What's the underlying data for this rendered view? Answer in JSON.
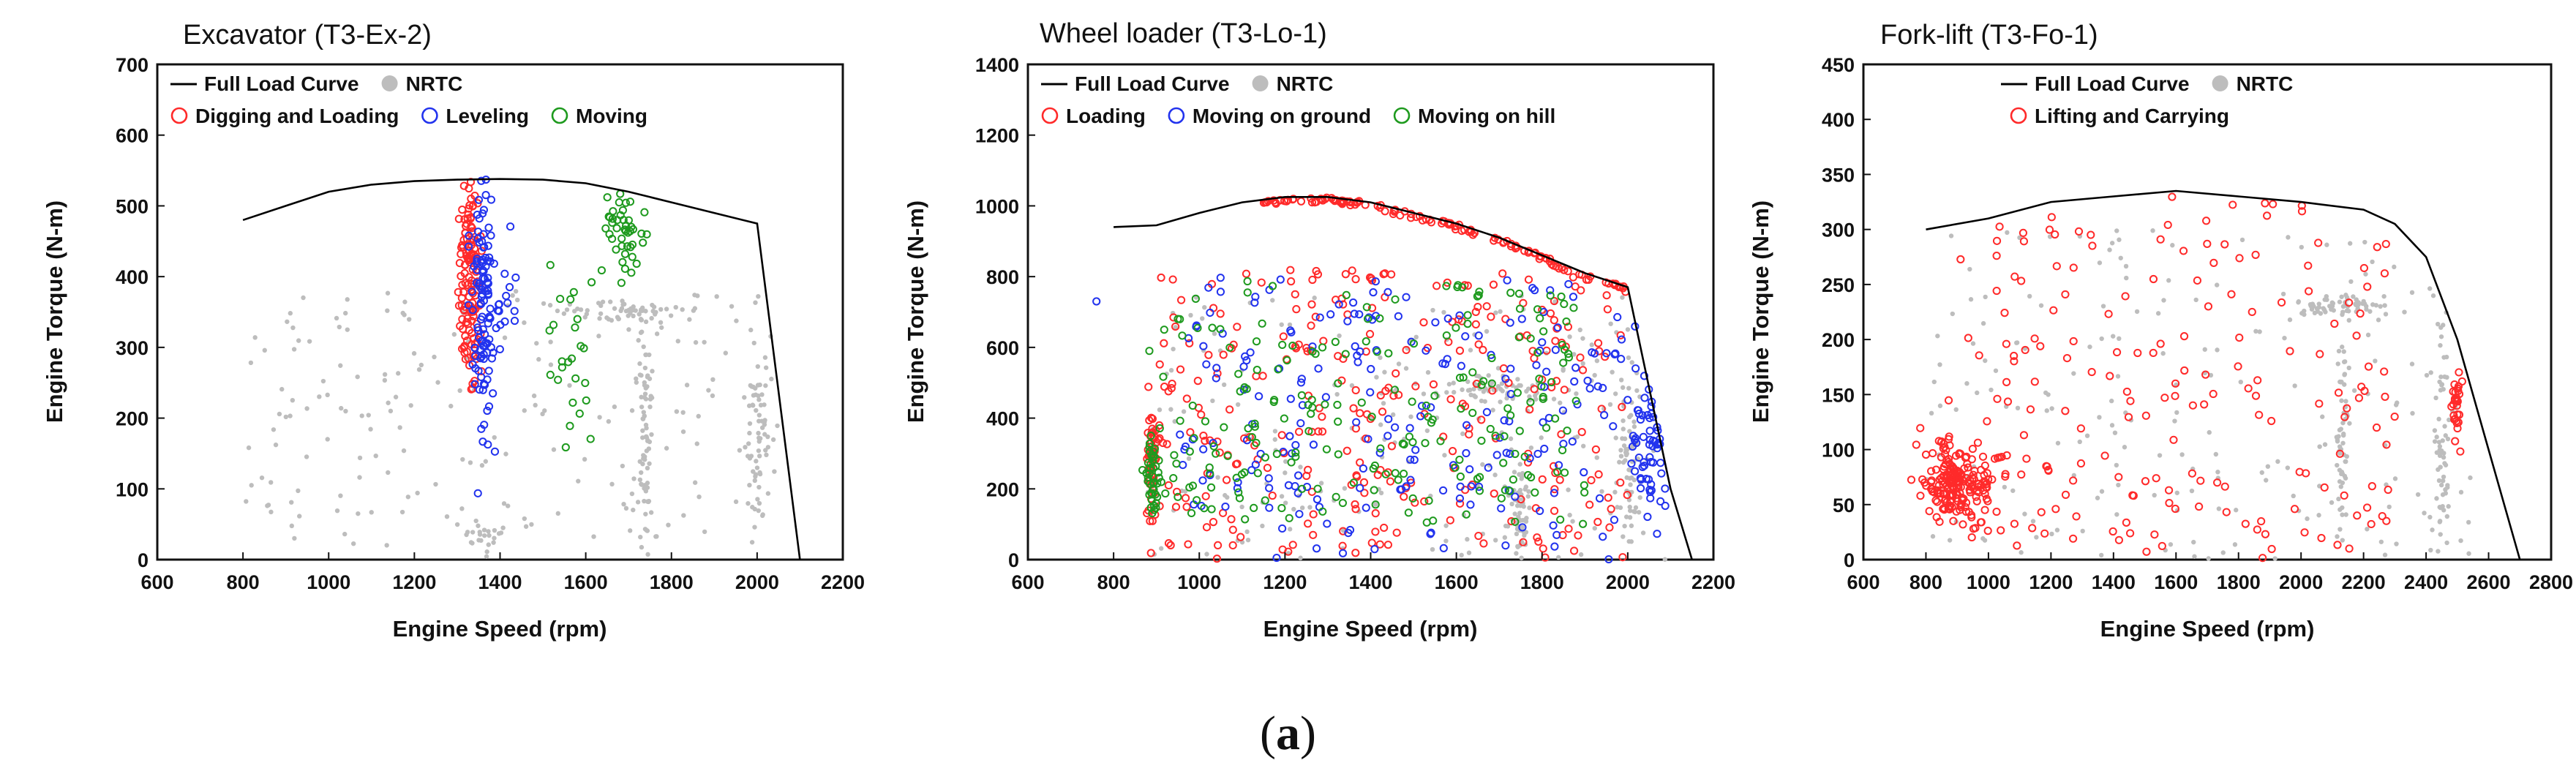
{
  "caption": {
    "open": "(",
    "letter": "a",
    "close": ")"
  },
  "colors": {
    "full_load": "#000000",
    "nrtc": "#bdbdbd",
    "red": "#ff2a2a",
    "blue": "#2233ee",
    "green": "#1e9a1e"
  },
  "chart_data": [
    {
      "type": "scatter",
      "title": "Excavator (T3-Ex-2)",
      "xlabel": "Engine Speed (rpm)",
      "ylabel": "Engine Torque (N-m)",
      "xlim": [
        600,
        2200
      ],
      "ylim": [
        0,
        700
      ],
      "xticks": [
        600,
        800,
        1000,
        1200,
        1400,
        1600,
        1800,
        2000,
        2200
      ],
      "yticks": [
        0,
        100,
        200,
        300,
        400,
        500,
        600,
        700
      ],
      "legend": {
        "row1": [
          {
            "label": "Full Load Curve",
            "kind": "line"
          },
          {
            "label": "NRTC",
            "kind": "gray"
          }
        ],
        "row2": [
          {
            "label": "Digging and Loading",
            "kind": "red"
          },
          {
            "label": "Leveling",
            "kind": "blue"
          },
          {
            "label": "Moving",
            "kind": "green"
          }
        ]
      },
      "full_load_curve": [
        [
          800,
          480
        ],
        [
          900,
          500
        ],
        [
          1000,
          520
        ],
        [
          1100,
          530
        ],
        [
          1200,
          535
        ],
        [
          1300,
          537
        ],
        [
          1400,
          538
        ],
        [
          1500,
          537
        ],
        [
          1600,
          532
        ],
        [
          1700,
          520
        ],
        [
          1800,
          505
        ],
        [
          1900,
          490
        ],
        [
          2000,
          475
        ],
        [
          2100,
          0
        ]
      ],
      "series": [
        {
          "name": "NRTC",
          "kind": "gray",
          "count": 420,
          "spread": [
            [
              800,
              2050
            ],
            [
              20,
              380
            ]
          ],
          "clusters": [
            [
              1720,
              350,
              120,
              12,
              60
            ],
            [
              1740,
              170,
              15,
              150,
              70
            ],
            [
              2000,
              180,
              25,
              130,
              70
            ],
            [
              1350,
              30,
              40,
              20,
              20
            ]
          ]
        },
        {
          "name": "Digging and Loading",
          "kind": "red",
          "count": 140,
          "clusters": [
            [
              1330,
              400,
              22,
              120,
              140
            ]
          ]
        },
        {
          "name": "Leveling",
          "kind": "blue",
          "count": 135,
          "clusters": [
            [
              1360,
              360,
              22,
              170,
              120
            ],
            [
              1420,
              380,
              30,
              60,
              15
            ]
          ]
        },
        {
          "name": "Moving",
          "kind": "green",
          "count": 70,
          "clusters": [
            [
              1690,
              460,
              40,
              50,
              45
            ],
            [
              1560,
              310,
              40,
              120,
              25
            ]
          ]
        }
      ]
    },
    {
      "type": "scatter",
      "title": "Wheel loader (T3-Lo-1)",
      "xlabel": "Engine Speed (rpm)",
      "ylabel": "Engine Torque (N-m)",
      "xlim": [
        600,
        2200
      ],
      "ylim": [
        0,
        1400
      ],
      "xticks": [
        600,
        800,
        1000,
        1200,
        1400,
        1600,
        1800,
        2000,
        2200
      ],
      "yticks": [
        0,
        200,
        400,
        600,
        800,
        1000,
        1200,
        1400
      ],
      "legend": {
        "row1": [
          {
            "label": "Full Load Curve",
            "kind": "line"
          },
          {
            "label": "NRTC",
            "kind": "gray"
          }
        ],
        "row2": [
          {
            "label": "Loading",
            "kind": "red"
          },
          {
            "label": "Moving on ground",
            "kind": "blue"
          },
          {
            "label": "Moving on hill",
            "kind": "green"
          }
        ]
      },
      "full_load_curve": [
        [
          800,
          940
        ],
        [
          900,
          945
        ],
        [
          1000,
          980
        ],
        [
          1100,
          1010
        ],
        [
          1200,
          1025
        ],
        [
          1300,
          1025
        ],
        [
          1400,
          1010
        ],
        [
          1500,
          980
        ],
        [
          1600,
          950
        ],
        [
          1700,
          910
        ],
        [
          1800,
          860
        ],
        [
          1900,
          810
        ],
        [
          2000,
          770
        ],
        [
          2100,
          200
        ],
        [
          2150,
          0
        ]
      ],
      "series": [
        {
          "name": "NRTC",
          "kind": "gray",
          "count": 380,
          "spread": [
            [
              880,
              2100
            ],
            [
              0,
              750
            ]
          ],
          "clusters": [
            [
              1700,
              480,
              150,
              40,
              60
            ],
            [
              1750,
              150,
              20,
              130,
              60
            ],
            [
              2000,
              300,
              30,
              200,
              70
            ]
          ]
        },
        {
          "name": "Loading",
          "kind": "red",
          "count": 340,
          "spread": [
            [
              880,
              2000
            ],
            [
              0,
              820
            ]
          ],
          "clusters": [
            [
              890,
              300,
              12,
              120,
              50
            ]
          ],
          "edge": {
            "from": 1150,
            "to": 2000,
            "count": 130
          }
        },
        {
          "name": "Moving on ground",
          "kind": "blue",
          "count": 300,
          "spread": [
            [
              950,
              2050
            ],
            [
              0,
              800
            ]
          ],
          "clusters": [
            [
              2060,
              350,
              40,
              200,
              80
            ]
          ],
          "extra": [
            [
              760,
              730
            ]
          ]
        },
        {
          "name": "Moving on hill",
          "kind": "green",
          "count": 260,
          "spread": [
            [
              880,
              1900
            ],
            [
              100,
              800
            ]
          ],
          "clusters": [
            [
              890,
              250,
              12,
              100,
              40
            ]
          ]
        }
      ]
    },
    {
      "type": "scatter",
      "title": "Fork-lift (T3-Fo-1)",
      "xlabel": "Engine Speed (rpm)",
      "ylabel": "Engine Torque (N-m)",
      "xlim": [
        600,
        2800
      ],
      "ylim": [
        0,
        450
      ],
      "xticks": [
        600,
        800,
        1000,
        1200,
        1400,
        1600,
        1800,
        2000,
        2200,
        2400,
        2600,
        2800
      ],
      "yticks": [
        0,
        50,
        100,
        150,
        200,
        250,
        300,
        350,
        400,
        450
      ],
      "legend": {
        "row1": [
          {
            "label": "Full Load Curve",
            "kind": "line"
          },
          {
            "label": "NRTC",
            "kind": "gray"
          }
        ],
        "row2": [
          {
            "label": "Lifting and Carrying",
            "kind": "red"
          }
        ]
      },
      "full_load_curve": [
        [
          800,
          300
        ],
        [
          1000,
          310
        ],
        [
          1200,
          325
        ],
        [
          1400,
          330
        ],
        [
          1600,
          335
        ],
        [
          1800,
          330
        ],
        [
          2000,
          325
        ],
        [
          2200,
          318
        ],
        [
          2300,
          305
        ],
        [
          2400,
          275
        ],
        [
          2500,
          200
        ],
        [
          2600,
          100
        ],
        [
          2700,
          0
        ]
      ],
      "series": [
        {
          "name": "NRTC",
          "kind": "gray",
          "count": 380,
          "spread": [
            [
              800,
              2600
            ],
            [
              0,
              300
            ]
          ],
          "clusters": [
            [
              2100,
              230,
              120,
              10,
              60
            ],
            [
              2130,
              110,
              15,
              100,
              60
            ],
            [
              2450,
              100,
              20,
              100,
              60
            ]
          ]
        },
        {
          "name": "Lifting and Carrying",
          "kind": "red",
          "count": 420,
          "spread": [
            [
              800,
              2300
            ],
            [
              0,
              330
            ]
          ],
          "clusters": [
            [
              900,
              70,
              90,
              30,
              200
            ],
            [
              2500,
              140,
              15,
              30,
              30
            ]
          ]
        }
      ]
    }
  ]
}
